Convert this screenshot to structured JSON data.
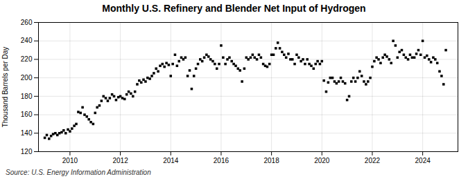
{
  "chart_data": {
    "type": "scatter",
    "title": "Monthly U.S. Refinery and Blender Net Input of Hydrogen",
    "ylabel": "Thousand Barrels per Day",
    "annotations": [
      "Source: U.S. Energy Information Administration"
    ],
    "marker": "square",
    "grid": true,
    "xlim": [
      2008.75,
      2025.4
    ],
    "xticks": [
      2010,
      2012,
      2014,
      2016,
      2018,
      2020,
      2022,
      2024
    ],
    "ylim": [
      120,
      260
    ],
    "yticks": [
      120,
      140,
      160,
      180,
      200,
      220,
      240,
      260
    ],
    "x": [
      2009.0,
      2009.08,
      2009.17,
      2009.25,
      2009.33,
      2009.42,
      2009.5,
      2009.58,
      2009.67,
      2009.75,
      2009.83,
      2009.92,
      2010.0,
      2010.08,
      2010.17,
      2010.25,
      2010.33,
      2010.42,
      2010.5,
      2010.58,
      2010.67,
      2010.75,
      2010.83,
      2010.92,
      2011.0,
      2011.08,
      2011.17,
      2011.25,
      2011.33,
      2011.42,
      2011.5,
      2011.58,
      2011.67,
      2011.75,
      2011.83,
      2011.92,
      2012.0,
      2012.08,
      2012.17,
      2012.25,
      2012.33,
      2012.42,
      2012.5,
      2012.58,
      2012.67,
      2012.75,
      2012.83,
      2012.92,
      2013.0,
      2013.08,
      2013.17,
      2013.25,
      2013.33,
      2013.42,
      2013.5,
      2013.58,
      2013.67,
      2013.75,
      2013.83,
      2013.92,
      2014.0,
      2014.08,
      2014.17,
      2014.25,
      2014.33,
      2014.42,
      2014.5,
      2014.58,
      2014.67,
      2014.75,
      2014.83,
      2014.92,
      2015.0,
      2015.08,
      2015.17,
      2015.25,
      2015.33,
      2015.42,
      2015.5,
      2015.58,
      2015.67,
      2015.75,
      2015.83,
      2015.92,
      2016.0,
      2016.08,
      2016.17,
      2016.25,
      2016.33,
      2016.42,
      2016.5,
      2016.58,
      2016.67,
      2016.75,
      2016.83,
      2016.92,
      2017.0,
      2017.08,
      2017.17,
      2017.25,
      2017.33,
      2017.42,
      2017.5,
      2017.58,
      2017.67,
      2017.75,
      2017.83,
      2017.92,
      2018.0,
      2018.08,
      2018.17,
      2018.25,
      2018.33,
      2018.42,
      2018.5,
      2018.58,
      2018.67,
      2018.75,
      2018.83,
      2018.92,
      2019.0,
      2019.08,
      2019.17,
      2019.25,
      2019.33,
      2019.42,
      2019.5,
      2019.58,
      2019.67,
      2019.75,
      2019.83,
      2019.92,
      2020.0,
      2020.08,
      2020.17,
      2020.25,
      2020.33,
      2020.42,
      2020.5,
      2020.58,
      2020.67,
      2020.75,
      2020.83,
      2020.92,
      2021.0,
      2021.08,
      2021.17,
      2021.25,
      2021.33,
      2021.42,
      2021.5,
      2021.58,
      2021.67,
      2021.75,
      2021.83,
      2021.92,
      2022.0,
      2022.08,
      2022.17,
      2022.25,
      2022.33,
      2022.42,
      2022.5,
      2022.58,
      2022.67,
      2022.75,
      2022.83,
      2022.92,
      2023.0,
      2023.08,
      2023.17,
      2023.25,
      2023.33,
      2023.42,
      2023.5,
      2023.58,
      2023.67,
      2023.75,
      2023.83,
      2023.92,
      2024.0,
      2024.08,
      2024.17,
      2024.25,
      2024.33,
      2024.42,
      2024.5,
      2024.58,
      2024.67,
      2024.75,
      2024.83,
      2024.92
    ],
    "values": [
      135,
      138,
      134,
      137,
      139,
      140,
      138,
      140,
      141,
      143,
      140,
      144,
      142,
      145,
      148,
      150,
      163,
      162,
      168,
      160,
      158,
      155,
      152,
      150,
      162,
      168,
      170,
      175,
      180,
      178,
      175,
      178,
      182,
      180,
      176,
      179,
      180,
      178,
      177,
      182,
      185,
      183,
      180,
      185,
      193,
      197,
      195,
      198,
      196,
      200,
      199,
      202,
      205,
      210,
      207,
      213,
      215,
      212,
      216,
      214,
      202,
      215,
      225,
      213,
      218,
      222,
      220,
      222,
      202,
      208,
      188,
      202,
      210,
      215,
      220,
      218,
      222,
      225,
      223,
      220,
      218,
      215,
      210,
      215,
      235,
      222,
      215,
      220,
      222,
      218,
      215,
      213,
      210,
      208,
      196,
      210,
      222,
      220,
      222,
      225,
      222,
      220,
      225,
      222,
      215,
      213,
      212,
      215,
      225,
      225,
      232,
      238,
      232,
      228,
      225,
      222,
      226,
      220,
      220,
      215,
      225,
      222,
      218,
      220,
      215,
      220,
      215,
      213,
      210,
      215,
      218,
      215,
      218,
      197,
      185,
      195,
      200,
      200,
      196,
      194,
      196,
      200,
      196,
      194,
      176,
      180,
      196,
      200,
      196,
      200,
      207,
      202,
      196,
      193,
      196,
      200,
      212,
      218,
      222,
      220,
      216,
      222,
      225,
      223,
      220,
      216,
      240,
      235,
      222,
      228,
      230,
      225,
      222,
      220,
      225,
      222,
      222,
      226,
      230,
      225,
      240,
      222,
      224,
      220,
      217,
      222,
      220,
      216,
      207,
      202,
      193,
      230
    ]
  }
}
